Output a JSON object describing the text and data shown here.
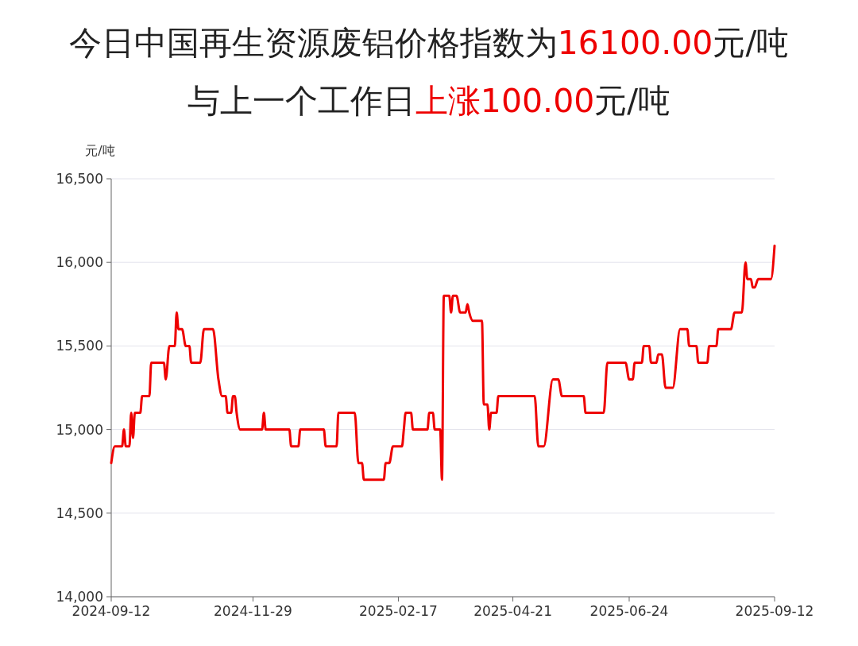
{
  "chart_data": {
    "type": "line",
    "title": "今日中国再生资源废铝价格指数为16100.00元/吨",
    "subtitle": "与上一个工作日上涨100.00元/吨",
    "ylabel": "元/吨",
    "x": [
      "2024-09-12",
      "2024-09-14",
      "2024-09-18",
      "2024-09-19",
      "2024-09-20",
      "2024-09-22",
      "2024-09-23",
      "2024-09-24",
      "2024-09-25",
      "2024-09-28",
      "2024-09-29",
      "2024-10-03",
      "2024-10-04",
      "2024-10-11",
      "2024-10-12",
      "2024-10-14",
      "2024-10-17",
      "2024-10-18",
      "2024-10-19",
      "2024-10-21",
      "2024-10-23",
      "2024-10-25",
      "2024-10-26",
      "2024-10-31",
      "2024-11-02",
      "2024-11-07",
      "2024-11-10",
      "2024-11-12",
      "2024-11-14",
      "2024-11-15",
      "2024-11-17",
      "2024-11-18",
      "2024-11-19",
      "2024-11-20",
      "2024-11-22",
      "2024-12-04",
      "2024-12-05",
      "2024-12-06",
      "2024-12-19",
      "2024-12-20",
      "2024-12-24",
      "2024-12-25",
      "2025-01-07",
      "2025-01-08",
      "2025-01-14",
      "2025-01-15",
      "2025-01-24",
      "2025-01-26",
      "2025-01-28",
      "2025-01-29",
      "2025-02-09",
      "2025-02-10",
      "2025-02-12",
      "2025-02-14",
      "2025-02-19",
      "2025-02-20",
      "2025-02-21",
      "2025-02-24",
      "2025-02-25",
      "2025-03-05",
      "2025-03-06",
      "2025-03-08",
      "2025-03-09",
      "2025-03-12",
      "2025-03-13",
      "2025-03-14",
      "2025-03-17",
      "2025-03-18",
      "2025-03-19",
      "2025-03-21",
      "2025-03-23",
      "2025-03-26",
      "2025-03-27",
      "2025-03-28",
      "2025-03-30",
      "2025-04-04",
      "2025-04-05",
      "2025-04-07",
      "2025-04-08",
      "2025-04-09",
      "2025-04-12",
      "2025-04-13",
      "2025-05-03",
      "2025-05-05",
      "2025-05-08",
      "2025-05-13",
      "2025-05-16",
      "2025-05-18",
      "2025-05-30",
      "2025-05-31",
      "2025-06-10",
      "2025-06-12",
      "2025-06-22",
      "2025-06-24",
      "2025-06-26",
      "2025-06-27",
      "2025-07-01",
      "2025-07-02",
      "2025-07-05",
      "2025-07-06",
      "2025-07-09",
      "2025-07-10",
      "2025-07-12",
      "2025-07-14",
      "2025-07-18",
      "2025-07-22",
      "2025-07-26",
      "2025-07-27",
      "2025-07-31",
      "2025-08-01",
      "2025-08-06",
      "2025-08-07",
      "2025-08-11",
      "2025-08-12",
      "2025-08-19",
      "2025-08-21",
      "2025-08-25",
      "2025-08-27",
      "2025-08-28",
      "2025-08-30",
      "2025-08-31",
      "2025-09-01",
      "2025-09-03",
      "2025-09-10",
      "2025-09-12"
    ],
    "series": [
      {
        "color": "#ee0000",
        "values": [
          14800,
          14900,
          14900,
          15000,
          14900,
          14900,
          15100,
          14950,
          15100,
          15100,
          15200,
          15200,
          15400,
          15400,
          15300,
          15500,
          15500,
          15700,
          15600,
          15600,
          15500,
          15500,
          15400,
          15400,
          15600,
          15600,
          15300,
          15200,
          15200,
          15100,
          15100,
          15200,
          15200,
          15100,
          15000,
          15000,
          15100,
          15000,
          15000,
          14900,
          14900,
          15000,
          15000,
          14900,
          14900,
          15100,
          15100,
          14800,
          14800,
          14700,
          14700,
          14800,
          14800,
          14900,
          14900,
          15000,
          15100,
          15100,
          15000,
          15000,
          15100,
          15100,
          15000,
          15000,
          14700,
          15800,
          15800,
          15700,
          15800,
          15800,
          15700,
          15700,
          15750,
          15700,
          15650,
          15650,
          15150,
          15150,
          15000,
          15100,
          15100,
          15200,
          15200,
          14900,
          14900,
          15300,
          15300,
          15200,
          15200,
          15100,
          15100,
          15400,
          15400,
          15300,
          15300,
          15400,
          15400,
          15500,
          15500,
          15400,
          15400,
          15450,
          15450,
          15250,
          15250,
          15600,
          15600,
          15500,
          15500,
          15400,
          15400,
          15500,
          15500,
          15600,
          15600,
          15700,
          15700,
          16000,
          15900,
          15900,
          15850,
          15850,
          15900,
          15900,
          16100
        ]
      }
    ],
    "xlim": [
      "2024-09-12",
      "2025-09-12"
    ],
    "xticks": [
      "2024-09-12",
      "2024-11-29",
      "2025-02-17",
      "2025-04-21",
      "2025-06-24",
      "2025-09-12"
    ],
    "ylim": [
      14000,
      16500
    ],
    "yticks": [
      {
        "value": 14000,
        "label": "14,000"
      },
      {
        "value": 14500,
        "label": "14,500"
      },
      {
        "value": 15000,
        "label": "15,000"
      },
      {
        "value": 15500,
        "label": "15,500"
      },
      {
        "value": 16000,
        "label": "16,000"
      },
      {
        "value": 16500,
        "label": "16,500"
      }
    ],
    "grid": "y",
    "marker": "none",
    "line_style": "solid"
  }
}
